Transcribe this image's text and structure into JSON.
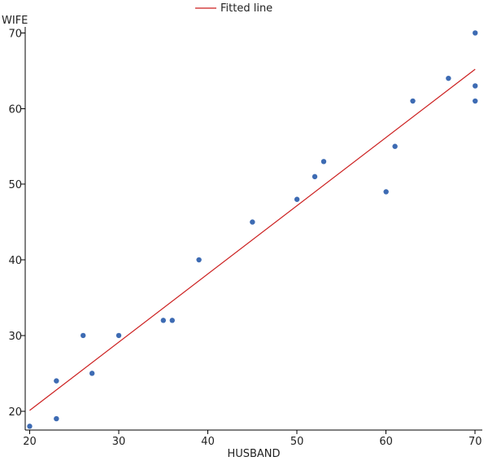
{
  "chart_data": {
    "type": "scatter",
    "title": "",
    "xlabel": "HUSBAND",
    "ylabel": "WIFE",
    "xlim": [
      19.5,
      70.8
    ],
    "ylim": [
      17.5,
      70.8
    ],
    "x_ticks": [
      20,
      30,
      40,
      50,
      60,
      70
    ],
    "y_ticks": [
      20,
      30,
      40,
      50,
      60,
      70
    ],
    "grid": false,
    "legend_position": "top-center",
    "series": [
      {
        "kind": "scatter",
        "color": "#3d6bb3",
        "points": [
          {
            "x": 20,
            "y": 18
          },
          {
            "x": 23,
            "y": 19
          },
          {
            "x": 23,
            "y": 24
          },
          {
            "x": 26,
            "y": 30
          },
          {
            "x": 27,
            "y": 25
          },
          {
            "x": 30,
            "y": 30
          },
          {
            "x": 35,
            "y": 32
          },
          {
            "x": 36,
            "y": 32
          },
          {
            "x": 39,
            "y": 40
          },
          {
            "x": 45,
            "y": 45
          },
          {
            "x": 50,
            "y": 48
          },
          {
            "x": 52,
            "y": 51
          },
          {
            "x": 53,
            "y": 53
          },
          {
            "x": 60,
            "y": 49
          },
          {
            "x": 61,
            "y": 55
          },
          {
            "x": 63,
            "y": 61
          },
          {
            "x": 67,
            "y": 64
          },
          {
            "x": 70,
            "y": 70
          },
          {
            "x": 70,
            "y": 63
          },
          {
            "x": 70,
            "y": 61
          }
        ]
      },
      {
        "kind": "line",
        "name": "Fitted line",
        "color": "#cc1f1f",
        "points": [
          {
            "x": 20,
            "y": 20.1
          },
          {
            "x": 70,
            "y": 65.2
          }
        ]
      }
    ]
  }
}
